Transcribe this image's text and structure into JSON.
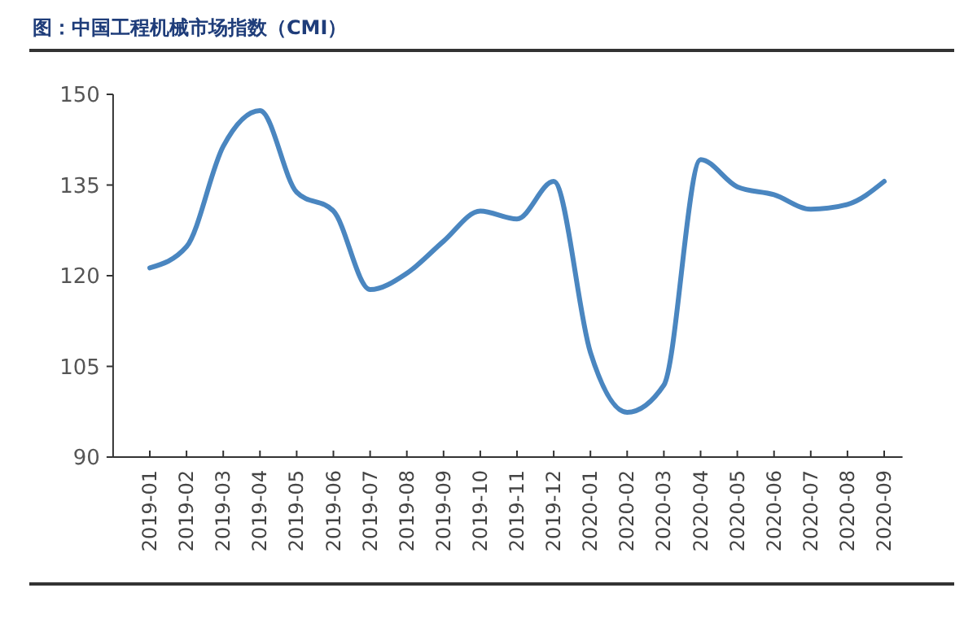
{
  "chart_data": {
    "type": "line",
    "title": "图：中国工程机械市场指数（CMI）",
    "categories": [
      "2019-01",
      "2019-02",
      "2019-03",
      "2019-04",
      "2019-05",
      "2019-06",
      "2019-07",
      "2019-08",
      "2019-09",
      "2019-10",
      "2019-11",
      "2019-12",
      "2020-01",
      "2020-02",
      "2020-03",
      "2020-04",
      "2020-05",
      "2020-06",
      "2020-07",
      "2020-08",
      "2020-09"
    ],
    "values": [
      121.3,
      124.8,
      141.4,
      147.3,
      133.8,
      130.7,
      117.7,
      120.4,
      125.7,
      130.7,
      129.4,
      135.6,
      107.3,
      97.4,
      101.9,
      139.2,
      134.7,
      133.4,
      131,
      131.8,
      135.6
    ],
    "color": "#4a86c0",
    "ylim": [
      90,
      150
    ],
    "yticks": [
      90,
      105,
      120,
      135,
      150
    ],
    "grid": false,
    "marker": "none",
    "line_style": "solid"
  }
}
